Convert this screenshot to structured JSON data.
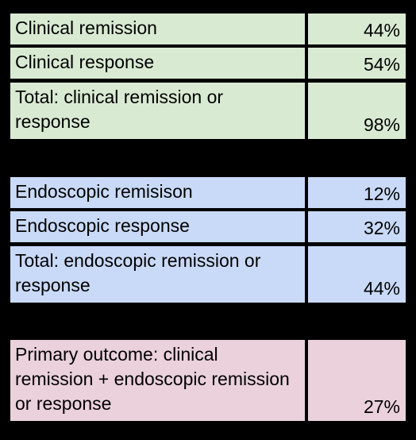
{
  "colors": {
    "background": "#000000",
    "clinical": "#d9ead3",
    "endoscopic": "#c9daf8",
    "primary": "#ead1dc"
  },
  "groups": [
    {
      "name": "clinical",
      "rows": [
        {
          "label": "Clinical remission",
          "value": "44%"
        },
        {
          "label": "Clinical response",
          "value": "54%"
        },
        {
          "label": "Total: clinical remission or response",
          "value": "98%"
        }
      ]
    },
    {
      "name": "endoscopic",
      "rows": [
        {
          "label": "Endoscopic remisison",
          "value": "12%"
        },
        {
          "label": "Endoscopic response",
          "value": "32%"
        },
        {
          "label": "Total: endoscopic remission or response",
          "value": "44%"
        }
      ]
    },
    {
      "name": "primary",
      "rows": [
        {
          "label": "Primary outcome: clinical remission + endoscopic remission or response",
          "value": "27%"
        }
      ]
    }
  ]
}
